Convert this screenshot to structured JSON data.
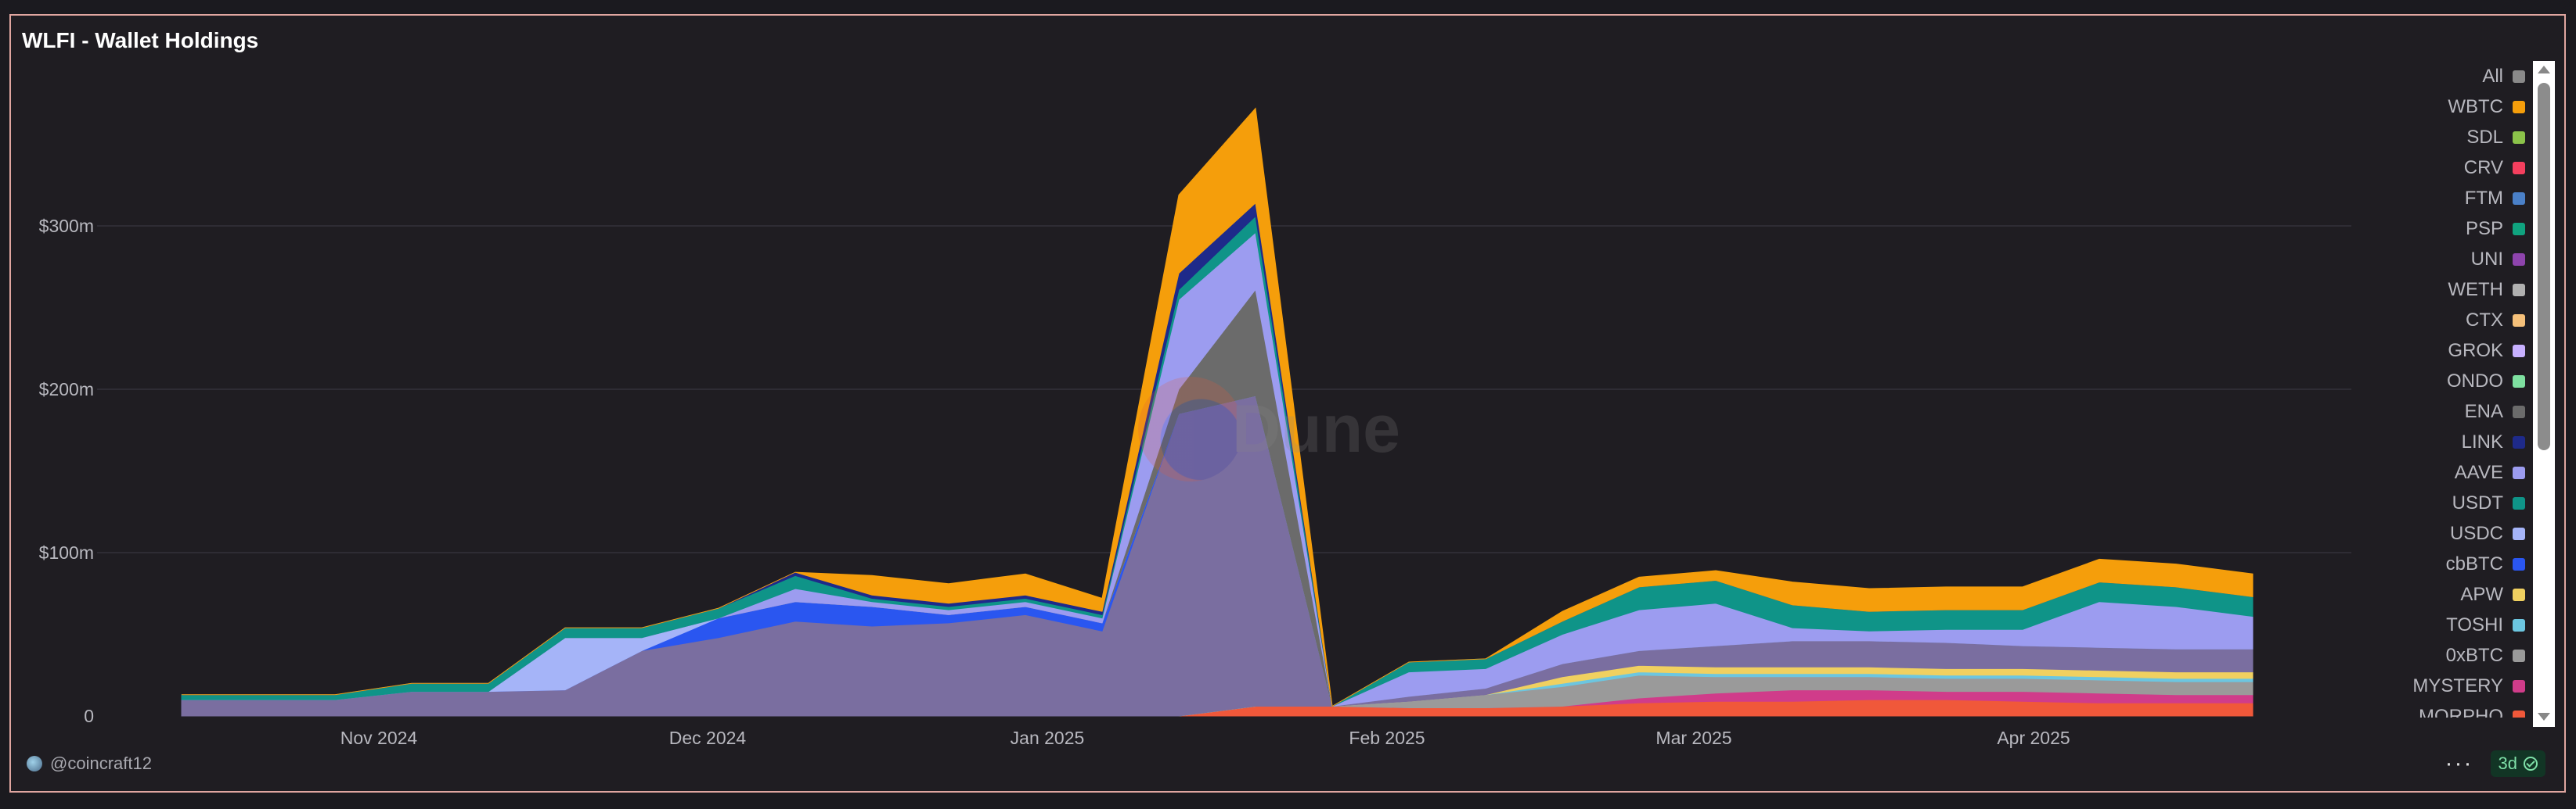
{
  "header": {
    "title": "WLFI - Wallet Holdings"
  },
  "footer": {
    "username": "@coincraft12",
    "more_glyph": "···",
    "freshness": "3d"
  },
  "watermark": {
    "text": "Dune"
  },
  "legend": {
    "items": [
      {
        "label": "All",
        "color": "#8a8a8a"
      },
      {
        "label": "WBTC",
        "color": "#f59e0b"
      },
      {
        "label": "SDL",
        "color": "#8bc34a"
      },
      {
        "label": "CRV",
        "color": "#f43f5e"
      },
      {
        "label": "FTM",
        "color": "#4a80c8"
      },
      {
        "label": "PSP",
        "color": "#10a37f"
      },
      {
        "label": "UNI",
        "color": "#8e44ad"
      },
      {
        "label": "WETH",
        "color": "#b0b0b0"
      },
      {
        "label": "CTX",
        "color": "#f5c07a"
      },
      {
        "label": "GROK",
        "color": "#c7b0ff"
      },
      {
        "label": "ONDO",
        "color": "#7ee0a0"
      },
      {
        "label": "ENA",
        "color": "#6b6b6b"
      },
      {
        "label": "LINK",
        "color": "#1e2a8a"
      },
      {
        "label": "AAVE",
        "color": "#9c9cf0"
      },
      {
        "label": "USDT",
        "color": "#0f9488"
      },
      {
        "label": "USDC",
        "color": "#a5b4f8"
      },
      {
        "label": "cbBTC",
        "color": "#2a56f0"
      },
      {
        "label": "APW",
        "color": "#f0d060"
      },
      {
        "label": "TOSHI",
        "color": "#6cc6e0"
      },
      {
        "label": "0xBTC",
        "color": "#9a9a9a"
      },
      {
        "label": "MYSTERY",
        "color": "#d03c8a"
      },
      {
        "label": "MORPHO",
        "color": "#f0583a"
      }
    ]
  },
  "chart_data": {
    "type": "area",
    "stacked": true,
    "yunit": "USD millions",
    "ylim": [
      0,
      400
    ],
    "yticks": [
      0,
      100,
      200,
      300
    ],
    "ytick_labels": [
      "0",
      "$100m",
      "$200m",
      "$300m"
    ],
    "xticks": [
      "Nov 2024",
      "Dec 2024",
      "Jan 2025",
      "Feb 2025",
      "Mar 2025",
      "Apr 2025"
    ],
    "grid": true,
    "legend_position": "right",
    "x": [
      "2024-10-14",
      "2024-10-21",
      "2024-10-28",
      "2024-11-04",
      "2024-11-11",
      "2024-11-18",
      "2024-11-25",
      "2024-12-02",
      "2024-12-09",
      "2024-12-16",
      "2024-12-23",
      "2024-12-30",
      "2025-01-06",
      "2025-01-13",
      "2025-01-20",
      "2025-01-27",
      "2025-02-03",
      "2025-02-10",
      "2025-02-17",
      "2025-02-24",
      "2025-03-03",
      "2025-03-10",
      "2025-03-17",
      "2025-03-24",
      "2025-03-31",
      "2025-04-07",
      "2025-04-14",
      "2025-04-21"
    ],
    "series": [
      {
        "name": "MORPHO",
        "color": "#f0583a",
        "values": [
          0,
          0,
          0,
          0,
          0,
          0,
          0,
          0,
          0,
          0,
          0,
          0,
          0,
          0,
          6,
          6,
          5,
          5,
          6,
          8,
          9,
          9,
          10,
          10,
          9,
          8,
          8,
          8
        ]
      },
      {
        "name": "MYSTERY",
        "color": "#d03c8a",
        "values": [
          0,
          0,
          0,
          0,
          0,
          0,
          0,
          0,
          0,
          0,
          0,
          0,
          0,
          0,
          0,
          0,
          0,
          0,
          0,
          3,
          5,
          7,
          6,
          5,
          6,
          6,
          5,
          5
        ]
      },
      {
        "name": "0xBTC",
        "color": "#9a9a9a",
        "values": [
          0,
          0,
          0,
          0,
          0,
          0,
          0,
          0,
          0,
          0,
          0,
          0,
          0,
          0,
          0,
          0,
          4,
          8,
          12,
          14,
          10,
          8,
          8,
          8,
          8,
          8,
          8,
          8
        ]
      },
      {
        "name": "TOSHI",
        "color": "#6cc6e0",
        "values": [
          0,
          0,
          0,
          0,
          0,
          0,
          0,
          0,
          0,
          0,
          0,
          0,
          0,
          0,
          0,
          0,
          0,
          0,
          2,
          2,
          2,
          2,
          2,
          2,
          2,
          2,
          2,
          2
        ]
      },
      {
        "name": "APW",
        "color": "#f0d060",
        "values": [
          0,
          0,
          0,
          0,
          0,
          0,
          0,
          0,
          0,
          0,
          0,
          0,
          0,
          0,
          0,
          0,
          0,
          0,
          4,
          4,
          4,
          4,
          4,
          4,
          4,
          4,
          4,
          4
        ]
      },
      {
        "name": "All",
        "color": "#7a6ea0",
        "values": [
          10,
          10,
          10,
          15,
          15,
          16,
          40,
          48,
          58,
          55,
          57,
          62,
          52,
          185,
          190,
          0,
          3,
          4,
          8,
          9,
          13,
          16,
          16,
          16,
          14,
          14,
          14,
          14
        ]
      },
      {
        "name": "cbBTC",
        "color": "#2a56f0",
        "values": [
          0,
          0,
          0,
          0,
          0,
          0,
          0,
          12,
          12,
          12,
          5,
          5,
          5,
          0,
          0,
          0,
          0,
          0,
          0,
          0,
          0,
          0,
          0,
          0,
          0,
          0,
          0,
          0
        ]
      },
      {
        "name": "USDC",
        "color": "#a5b4f8",
        "values": [
          0,
          0,
          0,
          0,
          0,
          32,
          8,
          0,
          0,
          0,
          0,
          0,
          0,
          0,
          0,
          0,
          0,
          0,
          0,
          0,
          0,
          0,
          0,
          0,
          0,
          0,
          0,
          0
        ]
      },
      {
        "name": "ENA",
        "color": "#6b6b6b",
        "values": [
          0,
          0,
          0,
          0,
          0,
          0,
          0,
          0,
          0,
          0,
          0,
          0,
          0,
          15,
          65,
          0,
          0,
          0,
          0,
          0,
          0,
          0,
          0,
          0,
          0,
          0,
          0,
          0
        ]
      },
      {
        "name": "AAVE",
        "color": "#9c9cf0",
        "values": [
          0,
          0,
          0,
          0,
          0,
          0,
          0,
          0,
          8,
          3,
          3,
          3,
          3,
          55,
          35,
          0,
          15,
          12,
          18,
          25,
          26,
          8,
          6,
          8,
          10,
          28,
          26,
          20
        ]
      },
      {
        "name": "USDT",
        "color": "#0f9488",
        "values": [
          3,
          3,
          3,
          5,
          5,
          6,
          6,
          6,
          8,
          2,
          2,
          2,
          2,
          6,
          10,
          0,
          6,
          6,
          8,
          14,
          14,
          14,
          12,
          12,
          12,
          12,
          12,
          12
        ]
      },
      {
        "name": "LINK",
        "color": "#1e2a8a",
        "values": [
          0,
          0,
          0,
          0,
          0,
          0,
          0,
          0,
          2,
          2,
          2,
          2,
          2,
          10,
          8,
          0,
          0,
          0,
          0,
          0,
          0,
          0,
          0,
          0,
          0,
          0,
          0,
          0
        ]
      },
      {
        "name": "WBTC",
        "color": "#f59e0b",
        "values": [
          0,
          0,
          0,
          0,
          0,
          0,
          0,
          0,
          0,
          12,
          12,
          13,
          8,
          48,
          58,
          0,
          0,
          0,
          6,
          6,
          6,
          14,
          14,
          14,
          14,
          14,
          14,
          14
        ]
      }
    ]
  }
}
